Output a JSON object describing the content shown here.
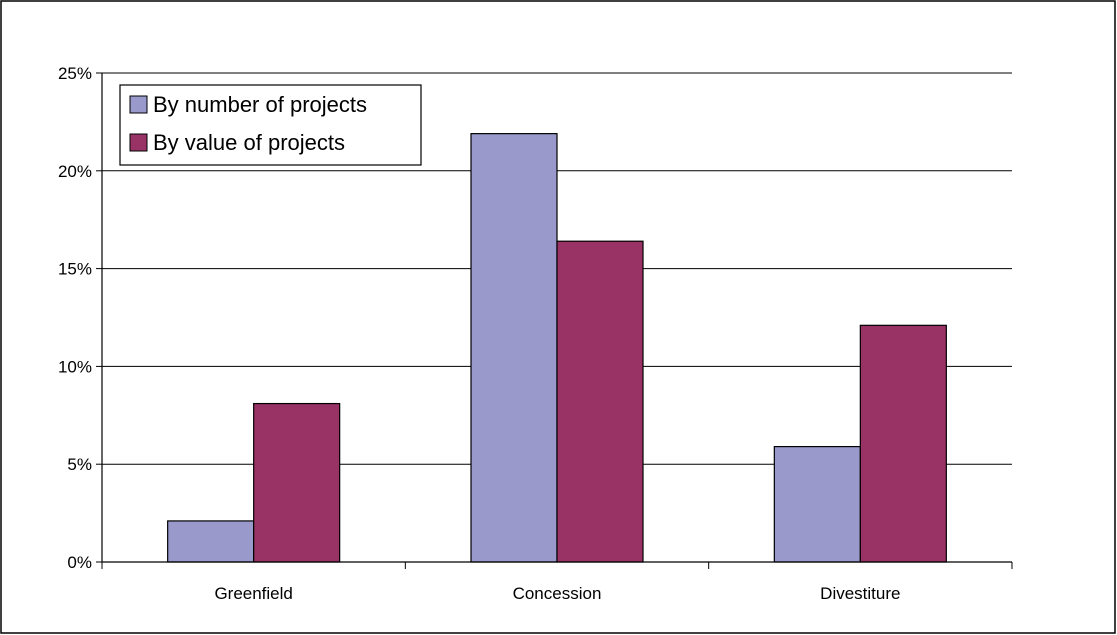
{
  "chart_data": {
    "type": "bar",
    "categories": [
      "Greenfield",
      "Concession",
      "Divestiture"
    ],
    "series": [
      {
        "name": "By number of projects",
        "values": [
          2.1,
          21.9,
          5.9
        ],
        "color": "#9999cc"
      },
      {
        "name": "By value of projects",
        "values": [
          8.1,
          16.4,
          12.1
        ],
        "color": "#993366"
      }
    ],
    "ylim": [
      0,
      25
    ],
    "yticks": [
      0,
      5,
      10,
      15,
      20,
      25
    ],
    "ytick_labels": [
      "0%",
      "5%",
      "10%",
      "15%",
      "20%",
      "25%"
    ],
    "grid": true,
    "legend_position": "top-left",
    "title": "",
    "xlabel": "",
    "ylabel": ""
  }
}
